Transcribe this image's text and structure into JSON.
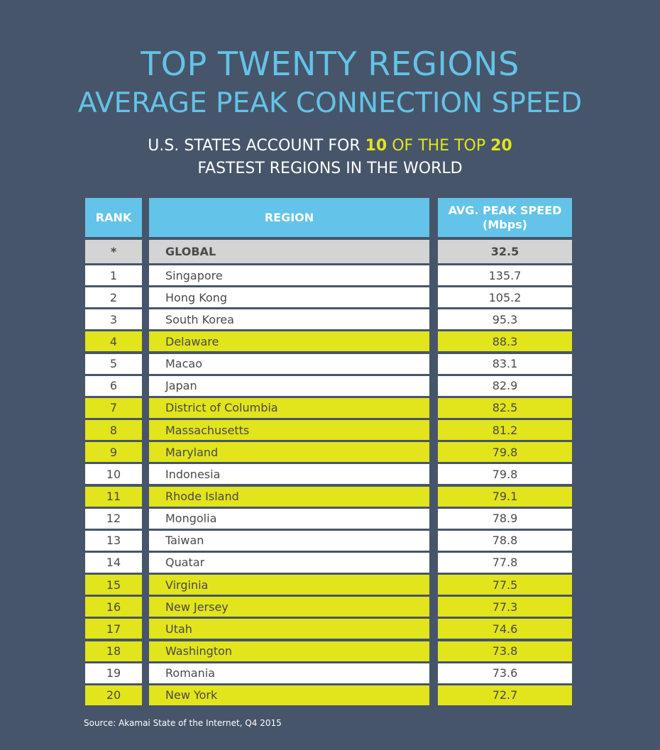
{
  "title_line1": "TOP TWENTY REGIONS",
  "title_line2": "AVERAGE PEAK CONNECTION SPEED",
  "subtitle": {
    "part1": "U.S. STATES ACCOUNT FOR ",
    "num1": "10",
    "part2": " OF THE TOP ",
    "num2": "20",
    "line2": "FASTEST REGIONS IN THE WORLD"
  },
  "colors": {
    "background": "#46556a",
    "header": "#63c3e8",
    "us_state_highlight": "#e2e41c",
    "global_row": "#d4d4d4",
    "row": "#ffffff"
  },
  "table": {
    "headers": {
      "rank": "RANK",
      "region": "REGION",
      "speed": "AVG. PEAK SPEED",
      "speed_unit": "(Mbps)"
    },
    "global": {
      "rank": "*",
      "region": "GLOBAL",
      "speed": "32.5"
    },
    "rows": [
      {
        "rank": "1",
        "region": "Singapore",
        "speed": "135.7",
        "us": false
      },
      {
        "rank": "2",
        "region": "Hong Kong",
        "speed": "105.2",
        "us": false
      },
      {
        "rank": "3",
        "region": "South Korea",
        "speed": "95.3",
        "us": false
      },
      {
        "rank": "4",
        "region": "Delaware",
        "speed": "88.3",
        "us": true
      },
      {
        "rank": "5",
        "region": "Macao",
        "speed": "83.1",
        "us": false
      },
      {
        "rank": "6",
        "region": "Japan",
        "speed": "82.9",
        "us": false
      },
      {
        "rank": "7",
        "region": "District of Columbia",
        "speed": "82.5",
        "us": true
      },
      {
        "rank": "8",
        "region": "Massachusetts",
        "speed": "81.2",
        "us": true
      },
      {
        "rank": "9",
        "region": "Maryland",
        "speed": "79.8",
        "us": true
      },
      {
        "rank": "10",
        "region": "Indonesia",
        "speed": "79.8",
        "us": false
      },
      {
        "rank": "11",
        "region": "Rhode Island",
        "speed": "79.1",
        "us": true
      },
      {
        "rank": "12",
        "region": "Mongolia",
        "speed": "78.9",
        "us": false
      },
      {
        "rank": "13",
        "region": "Taiwan",
        "speed": "78.8",
        "us": false
      },
      {
        "rank": "14",
        "region": "Quatar",
        "speed": "77.8",
        "us": false
      },
      {
        "rank": "15",
        "region": "Virginia",
        "speed": "77.5",
        "us": true
      },
      {
        "rank": "16",
        "region": "New Jersey",
        "speed": "77.3",
        "us": true
      },
      {
        "rank": "17",
        "region": "Utah",
        "speed": "74.6",
        "us": true
      },
      {
        "rank": "18",
        "region": "Washington",
        "speed": "73.8",
        "us": true
      },
      {
        "rank": "19",
        "region": "Romania",
        "speed": "73.6",
        "us": false
      },
      {
        "rank": "20",
        "region": "New York",
        "speed": "72.7",
        "us": true
      }
    ]
  },
  "source": "Source: Akamai State of the Internet, Q4 2015"
}
